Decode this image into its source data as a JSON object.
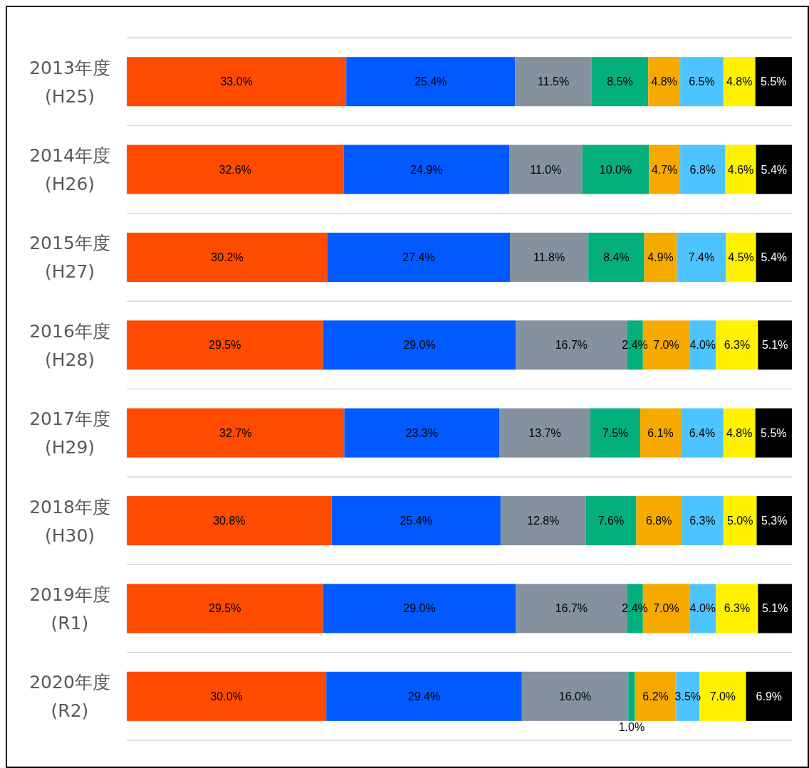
{
  "chart_data": {
    "type": "bar",
    "orientation": "horizontal",
    "stacked": true,
    "grid": "y",
    "categories": [
      "2013年度\n(H25)",
      "2014年度\n(H26)",
      "2015年度\n(H27)",
      "2016年度\n(H28)",
      "2017年度\n(H29)",
      "2018年度\n(H30)",
      "2019年度\n(R1)",
      "2020年度\n(R2)"
    ],
    "series": [
      {
        "color": "#ff4b00",
        "values": [
          33.0,
          32.6,
          30.2,
          29.5,
          32.7,
          30.8,
          29.5,
          30.0
        ],
        "value_labels": [
          "33.0%",
          "32.6%",
          "30.2%",
          "29.5%",
          "32.7%",
          "30.8%",
          "29.5%",
          "30.0%"
        ]
      },
      {
        "color": "#005aff",
        "values": [
          25.4,
          24.9,
          27.4,
          29.0,
          23.3,
          25.4,
          29.0,
          29.4
        ],
        "value_labels": [
          "25.4%",
          "24.9%",
          "27.4%",
          "29.0%",
          "23.3%",
          "25.4%",
          "29.0%",
          "29.4%"
        ]
      },
      {
        "color": "#84919e",
        "values": [
          11.5,
          11.0,
          11.8,
          16.7,
          13.7,
          12.8,
          16.7,
          16.0
        ],
        "value_labels": [
          "11.5%",
          "11.0%",
          "11.8%",
          "16.7%",
          "13.7%",
          "12.8%",
          "16.7%",
          "16.0%"
        ]
      },
      {
        "color": "#03af7a",
        "values": [
          8.5,
          10.0,
          8.4,
          2.4,
          7.5,
          7.6,
          2.4,
          1.0
        ],
        "value_labels": [
          "8.5%",
          "10.0%",
          "8.4%",
          "2.4%",
          "7.5%",
          "7.6%",
          "2.4%",
          "1.0%"
        ]
      },
      {
        "color": "#f6aa00",
        "values": [
          4.8,
          4.7,
          4.9,
          7.0,
          6.1,
          6.8,
          7.0,
          6.2
        ],
        "value_labels": [
          "4.8%",
          "4.7%",
          "4.9%",
          "7.0%",
          "6.1%",
          "6.8%",
          "7.0%",
          "6.2%"
        ]
      },
      {
        "color": "#4dc4ff",
        "values": [
          6.5,
          6.8,
          7.4,
          4.0,
          6.4,
          6.3,
          4.0,
          3.5
        ],
        "value_labels": [
          "6.5%",
          "6.8%",
          "7.4%",
          "4.0%",
          "6.4%",
          "6.3%",
          "4.0%",
          "3.5%"
        ]
      },
      {
        "color": "#fff100",
        "values": [
          4.8,
          4.6,
          4.5,
          6.3,
          4.8,
          5.0,
          6.3,
          7.0
        ],
        "value_labels": [
          "4.8%",
          "4.6%",
          "4.5%",
          "6.3%",
          "4.8%",
          "5.0%",
          "6.3%",
          "7.0%"
        ]
      },
      {
        "color": "#000000",
        "values": [
          5.5,
          5.4,
          5.4,
          5.1,
          5.5,
          5.3,
          5.1,
          6.9
        ],
        "value_labels": [
          "5.5%",
          "5.4%",
          "5.4%",
          "5.1%",
          "5.5%",
          "5.3%",
          "5.1%",
          "6.9%"
        ]
      }
    ]
  }
}
